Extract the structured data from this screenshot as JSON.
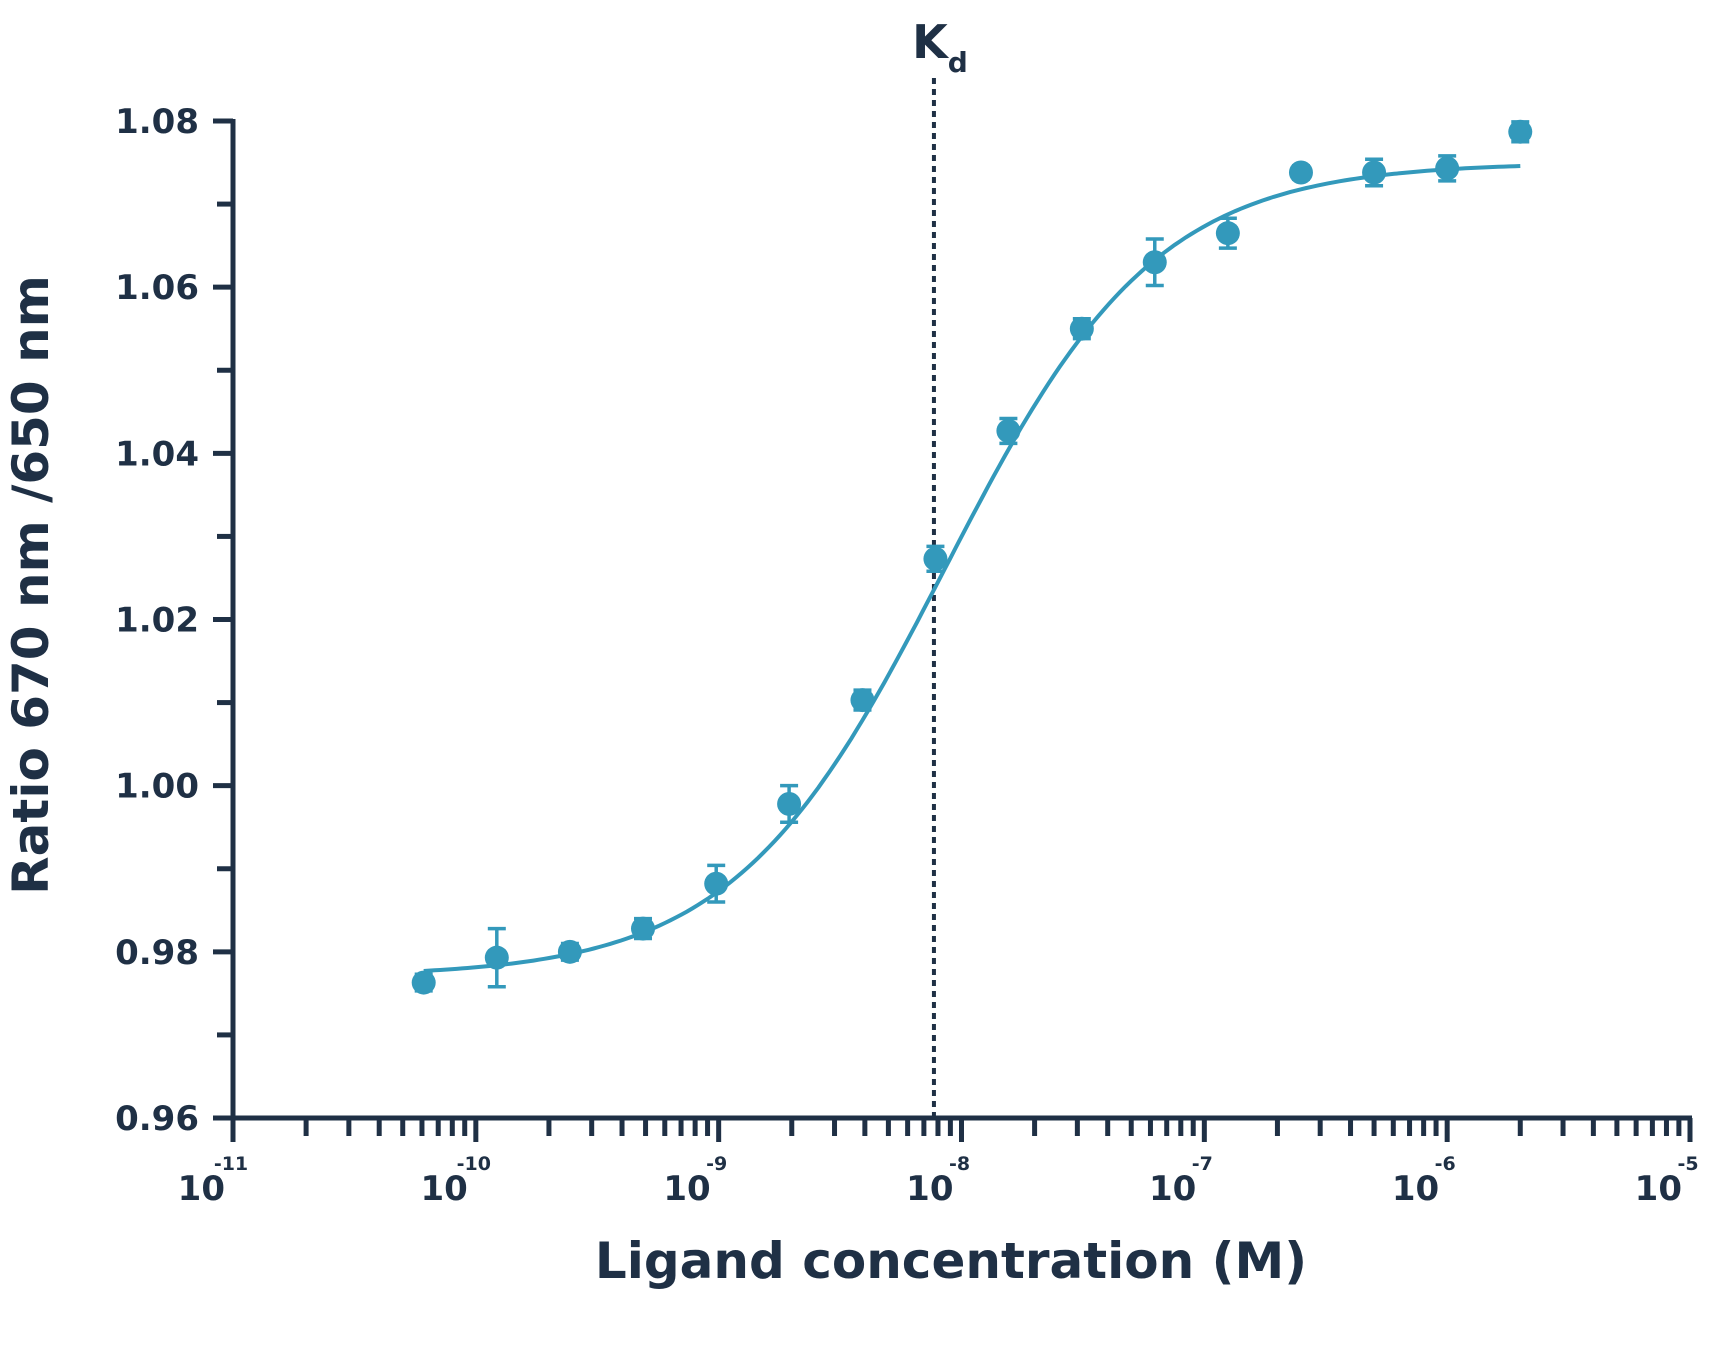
{
  "chart_data": {
    "type": "scatter",
    "title": "",
    "xlabel": "Ligand concentration (M)",
    "ylabel": "Ratio 670 nm /650 nm",
    "x_scale": "log",
    "xlim": [
      1e-11,
      1e-05
    ],
    "ylim": [
      0.96,
      1.08
    ],
    "y_ticks": [
      "0.96",
      "0.98",
      "1.00",
      "1.02",
      "1.04",
      "1.06",
      "1.08"
    ],
    "x_ticks": [
      {
        "base": "10",
        "exp": "-11",
        "value": 1e-11
      },
      {
        "base": "10",
        "exp": "-10",
        "value": 1e-10
      },
      {
        "base": "10",
        "exp": "-9",
        "value": 1e-09
      },
      {
        "base": "10",
        "exp": "-8",
        "value": 1e-08
      },
      {
        "base": "10",
        "exp": "-7",
        "value": 1e-07
      },
      {
        "base": "10",
        "exp": "-6",
        "value": 1e-06
      },
      {
        "base": "10",
        "exp": "-5",
        "value": 1e-05
      }
    ],
    "kd": {
      "label": "K",
      "subscript": "d",
      "x": 7.7e-09
    },
    "color": "#3399bb",
    "points": [
      {
        "x": 6.1e-11,
        "y": 0.9763,
        "err": 0.001
      },
      {
        "x": 1.22e-10,
        "y": 0.9793,
        "err": 0.0035
      },
      {
        "x": 2.44e-10,
        "y": 0.98,
        "err": 0.001
      },
      {
        "x": 4.88e-10,
        "y": 0.9828,
        "err": 0.0012
      },
      {
        "x": 9.77e-10,
        "y": 0.9882,
        "err": 0.0022
      },
      {
        "x": 1.95e-09,
        "y": 0.9978,
        "err": 0.0022
      },
      {
        "x": 3.91e-09,
        "y": 1.0103,
        "err": 0.0012
      },
      {
        "x": 7.81e-09,
        "y": 1.0273,
        "err": 0.0015
      },
      {
        "x": 1.56e-08,
        "y": 1.0427,
        "err": 0.0015
      },
      {
        "x": 3.13e-08,
        "y": 1.055,
        "err": 0.0012
      },
      {
        "x": 6.25e-08,
        "y": 1.063,
        "err": 0.0028
      },
      {
        "x": 1.25e-07,
        "y": 1.0665,
        "err": 0.0018
      },
      {
        "x": 2.5e-07,
        "y": 1.0738,
        "err": 0.0008
      },
      {
        "x": 5e-07,
        "y": 1.0738,
        "err": 0.0016
      },
      {
        "x": 1e-06,
        "y": 1.0743,
        "err": 0.0015
      },
      {
        "x": 2e-06,
        "y": 1.0787,
        "err": 0.0012
      }
    ],
    "fit": {
      "bottom": 0.977,
      "top": 1.075,
      "ec50": 8.5e-09,
      "hill": 1.0,
      "x_range": [
        6.1e-11,
        2e-06
      ]
    }
  }
}
